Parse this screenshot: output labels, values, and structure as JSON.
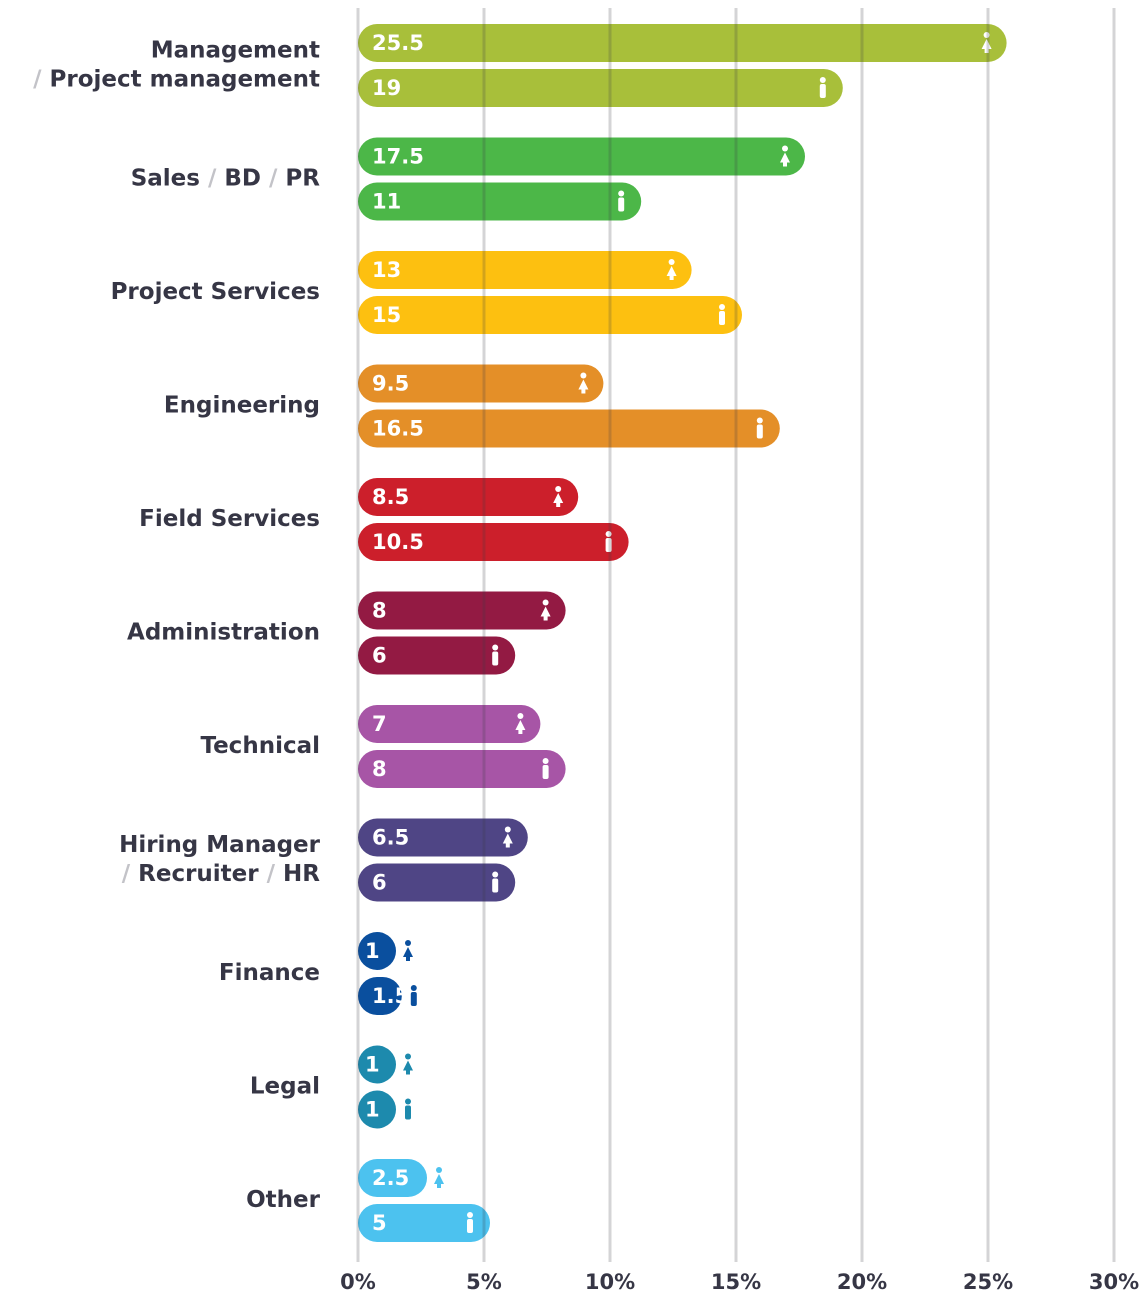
{
  "chart_data": {
    "type": "bar",
    "categories": [
      [
        "Management",
        "/ Project management"
      ],
      [
        "Sales / BD / PR"
      ],
      [
        "Project Services"
      ],
      [
        "Engineering"
      ],
      [
        "Field Services"
      ],
      [
        "Administration"
      ],
      [
        "Technical"
      ],
      [
        "Hiring Manager",
        "/ Recruiter / HR"
      ],
      [
        "Finance"
      ],
      [
        "Legal"
      ],
      [
        "Other"
      ]
    ],
    "colors": [
      "#a8bf3a",
      "#4cb748",
      "#fdc010",
      "#e48f28",
      "#cc1f2b",
      "#931a43",
      "#a755a6",
      "#4f4585",
      "#0a4f9e",
      "#1d8aad",
      "#4cc2ef"
    ],
    "series": [
      {
        "values": [
          25.5,
          17.5,
          13,
          9.5,
          8.5,
          8,
          7,
          6.5,
          1,
          1,
          2.5
        ]
      },
      {
        "values": [
          19,
          11,
          15,
          16.5,
          10.5,
          6,
          8,
          6,
          1.5,
          1,
          5
        ]
      }
    ],
    "xlim": [
      0,
      30
    ],
    "xticks": [
      {
        "value": 0,
        "label": "0%"
      },
      {
        "value": 5,
        "label": "5%"
      },
      {
        "value": 10,
        "label": "10%"
      },
      {
        "value": 15,
        "label": "15%"
      },
      {
        "value": 20,
        "label": "20%"
      },
      {
        "value": 25,
        "label": "25%"
      },
      {
        "value": 30,
        "label": "30%"
      }
    ],
    "grid": true
  }
}
